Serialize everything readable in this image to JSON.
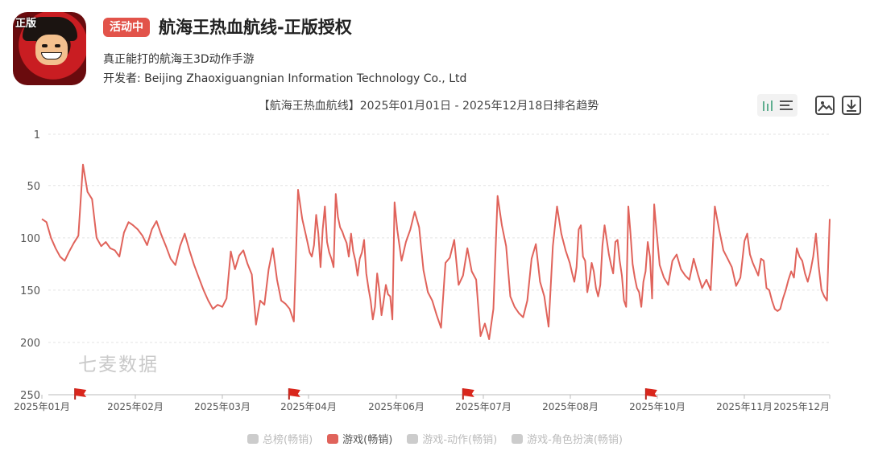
{
  "app": {
    "status_badge": "活动中",
    "title": "航海王热血航线-正版授权",
    "icon_badge": "正版",
    "subtitle": "真正能打的航海王3D动作手游",
    "developer_label": "开发者:",
    "developer_name": "Beijing Zhaoxiguangnian Information Technology Co., Ltd"
  },
  "chart_header": {
    "title": "【航海王热血航线】2025年01月01日 - 2025年12月18日排名趋势"
  },
  "toolbar": {
    "icons": [
      "bar-chart-icon",
      "list-icon",
      "image-icon",
      "download-icon"
    ]
  },
  "watermark": "七麦数据",
  "colors": {
    "accent": "#e2534a",
    "line": "#e0635b",
    "legend_inactive": "#cccccc"
  },
  "legend": [
    {
      "label": "总榜(畅销)",
      "active": false
    },
    {
      "label": "游戏(畅销)",
      "active": true
    },
    {
      "label": "游戏-动作(畅销)",
      "active": false
    },
    {
      "label": "游戏-角色扮演(畅销)",
      "active": false
    }
  ],
  "chart_data": {
    "type": "line",
    "title": "【航海王热血航线】2025年01月01日 - 2025年12月18日排名趋势",
    "y_inverted": true,
    "ylim": [
      1,
      250
    ],
    "y_ticks": [
      "1",
      "50",
      "100",
      "150",
      "200",
      "250"
    ],
    "x_ticks": [
      "2025年01月",
      "2025年02月",
      "2025年03月",
      "2025年04月",
      "2025年06月",
      "2025年07月",
      "2025年08月",
      "2025年10月",
      "2025年11月",
      "2025年12月"
    ],
    "grid": true,
    "legend_position": "bottom",
    "event_flags": [
      "2025-01-12",
      "2025-03-25",
      "2025-06-24",
      "2025-09-23"
    ],
    "series": [
      {
        "name": "游戏(畅销)",
        "x_start": "2025-01-01",
        "x_end": "2025-12-18",
        "values": [
          82,
          85,
          100,
          110,
          118,
          122,
          113,
          105,
          98,
          30,
          56,
          63,
          100,
          108,
          104,
          110,
          112,
          118,
          95,
          85,
          88,
          92,
          98,
          107,
          92,
          84,
          97,
          108,
          120,
          126,
          108,
          96,
          112,
          126,
          138,
          150,
          160,
          168,
          164,
          166,
          158,
          113,
          130,
          117,
          112,
          125,
          135,
          183,
          160,
          164,
          130,
          110,
          140,
          160,
          163,
          168,
          180,
          54,
          82,
          100,
          114,
          118,
          107,
          78,
          96,
          128,
          92,
          70,
          104,
          114,
          120,
          128,
          58,
          80,
          90,
          94,
          100,
          105,
          118,
          96,
          113,
          122,
          136,
          120,
          114,
          102,
          134,
          148,
          160,
          178,
          166,
          134,
          150,
          174,
          160,
          145,
          154,
          156,
          178,
          66,
          92,
          122,
          104,
          92,
          75,
          90,
          131,
          152,
          160,
          174,
          186,
          124,
          119,
          102,
          145,
          136,
          110,
          132,
          140,
          194,
          182,
          197,
          168,
          60,
          88,
          108,
          156,
          166,
          172,
          176,
          160,
          120,
          106,
          142,
          156,
          185,
          108,
          70,
          96,
          112,
          124,
          134,
          142,
          128,
          92,
          88,
          118,
          122,
          152,
          140,
          124,
          132,
          148,
          156,
          145,
          108,
          88,
          102,
          116,
          126,
          134,
          104,
          102,
          122,
          136,
          160,
          166,
          70,
          96,
          125,
          138,
          148,
          152,
          166,
          142,
          132,
          104,
          118,
          158,
          68,
          92,
          126,
          138,
          145,
          122,
          116,
          130,
          136,
          140,
          120,
          135,
          148,
          140,
          150,
          70,
          92,
          112,
          120,
          128,
          146,
          138,
          103,
          96,
          116,
          124,
          130,
          136,
          120,
          122,
          148,
          150,
          160,
          168,
          170,
          168,
          158,
          150,
          140,
          132,
          138,
          110,
          118,
          122,
          134,
          142,
          132,
          118,
          96,
          128,
          150,
          156,
          160,
          82
        ]
      }
    ]
  }
}
